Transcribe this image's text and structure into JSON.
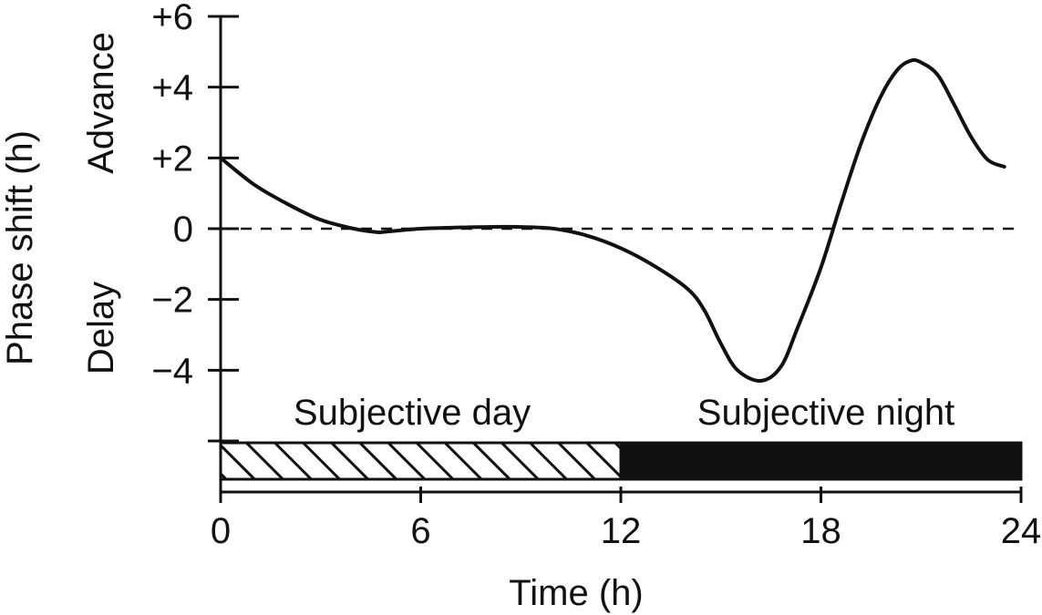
{
  "chart_data": {
    "type": "line",
    "title": "",
    "xlabel": "Time (h)",
    "ylabel": "Phase shift (h)",
    "xlim": [
      0,
      24
    ],
    "ylim": [
      -6,
      6
    ],
    "x_ticks": [
      {
        "value": 0,
        "label": "0"
      },
      {
        "value": 6,
        "label": "6"
      },
      {
        "value": 12,
        "label": "12"
      },
      {
        "value": 18,
        "label": "18"
      },
      {
        "value": 24,
        "label": "24"
      }
    ],
    "y_ticks": [
      {
        "value": 6,
        "label": "+6"
      },
      {
        "value": 4,
        "label": "+4"
      },
      {
        "value": 2,
        "label": "+2"
      },
      {
        "value": 0,
        "label": "0"
      },
      {
        "value": -2,
        "label": "−2"
      },
      {
        "value": -4,
        "label": "−4"
      },
      {
        "value": -6,
        "label": ""
      }
    ],
    "y_region_labels": {
      "advance": "Advance",
      "delay": "Delay"
    },
    "zero_line": {
      "value": 0,
      "style": "dashed"
    },
    "bands": [
      {
        "label": "Subjective day",
        "from": 0,
        "to": 12,
        "fill": "hatched"
      },
      {
        "label": "Subjective night",
        "from": 12,
        "to": 24,
        "fill": "solid"
      }
    ],
    "series": [
      {
        "x": [
          0,
          1,
          2,
          3,
          4,
          4.7,
          5,
          6,
          7,
          8,
          9,
          10,
          11,
          12,
          13,
          14,
          14.5,
          15,
          15.5,
          16.2,
          16.8,
          17.3,
          18,
          18.6,
          19.2,
          19.8,
          20.3,
          20.7,
          21,
          21.5,
          22,
          22.5,
          23,
          23.5
        ],
        "y": [
          2,
          1.25,
          0.7,
          0.25,
          0,
          -0.1,
          -0.08,
          0,
          0.03,
          0.05,
          0.05,
          0,
          -0.2,
          -0.55,
          -1.05,
          -1.7,
          -2.3,
          -3.25,
          -4,
          -4.3,
          -3.9,
          -2.8,
          -1.1,
          0.7,
          2.4,
          3.75,
          4.5,
          4.75,
          4.7,
          4.35,
          3.5,
          2.6,
          1.95,
          1.75
        ]
      }
    ],
    "grid": false,
    "legend": "none",
    "colors": {
      "line": "#111111",
      "band_night": "#111111",
      "background": "#ffffff"
    }
  }
}
